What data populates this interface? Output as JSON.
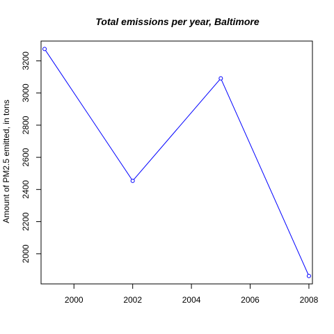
{
  "chart_data": {
    "type": "line",
    "title": "Total emissions per year, Baltimore",
    "xlabel": "",
    "ylabel": "Amount of PM2.5 emitted, in tons",
    "x": [
      1999,
      2002,
      2005,
      2008
    ],
    "series": [
      {
        "values": [
          3274,
          2454,
          3091,
          1862
        ],
        "color": "#0000ff"
      }
    ],
    "x_ticks": [
      2000,
      2002,
      2004,
      2006,
      2008
    ],
    "y_ticks": [
      2000,
      2200,
      2400,
      2600,
      2800,
      3000,
      3200
    ],
    "xlim": [
      1998.88,
      2008.12
    ],
    "ylim": [
      1812.9,
      3323.1
    ],
    "grid": false,
    "legend": "none",
    "markers": "open-circle"
  }
}
